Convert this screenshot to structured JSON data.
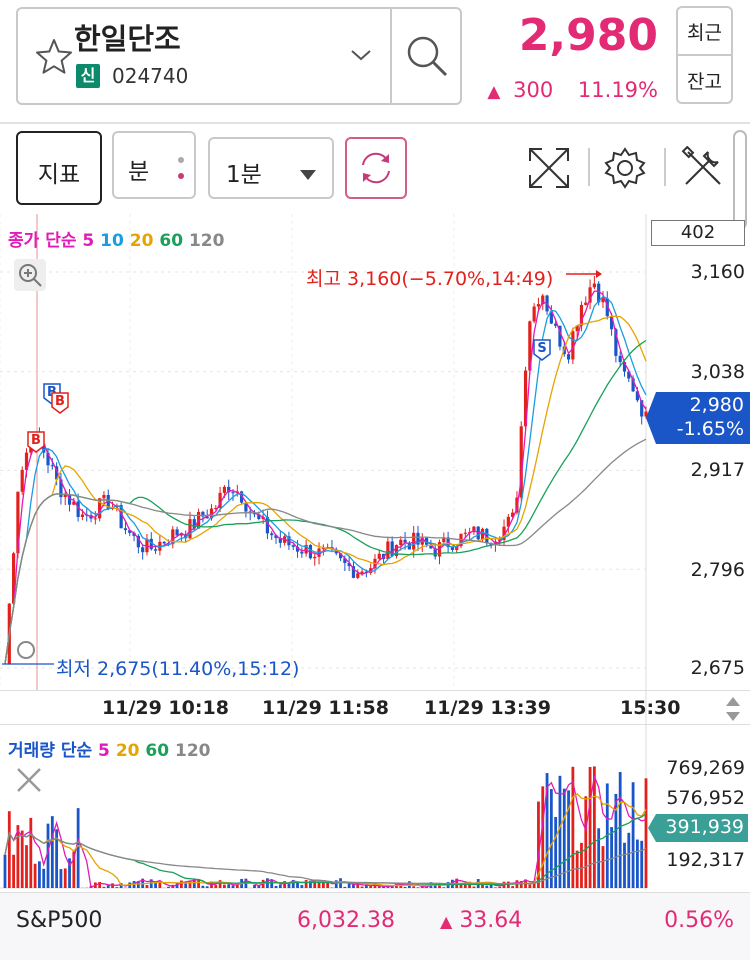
{
  "header": {
    "stock_name": "한일단조",
    "credit_badge": "신",
    "stock_code": "024740",
    "price": "2,980",
    "change_arrow": "▲",
    "change_amount": "300",
    "change_rate": "11.19%",
    "recent_label": "최근",
    "balance_label": "잔고"
  },
  "toolbar": {
    "indicator_label": "지표",
    "minute_label": "분",
    "interval_value": "1분"
  },
  "chart": {
    "ma_legend": {
      "prefix": "종가 단순",
      "p5": "5",
      "p10": "10",
      "p20": "20",
      "p60": "60",
      "p120": "120"
    },
    "box_value": "402",
    "y_ticks": [
      "3,160",
      "3,038",
      "2,917",
      "2,796",
      "2,675"
    ],
    "current_price": "2,980",
    "current_change": "-1.65%",
    "max_annotation": "최고 3,160(−5.70%,14:49)",
    "min_annotation": "최저 2,675(11.40%,15:12)",
    "x_ticks": [
      "11/29 10:18",
      "11/29 11:58",
      "11/29 13:39",
      "15:30"
    ],
    "colors": {
      "up": "#e2211c",
      "down": "#1a56c8",
      "ma5": "#e21bb8",
      "ma10": "#1a9ce0",
      "ma20": "#e6a400",
      "ma60": "#1aa05a",
      "ma120": "#888888"
    }
  },
  "volume": {
    "legend": {
      "prefix": "거래량 단순",
      "p5": "5",
      "p20": "20",
      "p60": "60",
      "p120": "120"
    },
    "y_ticks": [
      "769,269",
      "576,952",
      "192,317"
    ],
    "current_volume": "391,939"
  },
  "footer": {
    "index_name": "S&P500",
    "index_value": "6,032.38",
    "index_arrow": "▲",
    "index_change": "33.64",
    "index_rate": "0.56%"
  },
  "chart_data": {
    "type": "line",
    "ylim": [
      2675,
      3160
    ],
    "series": [
      {
        "name": "종가",
        "values": [
          2680,
          2900,
          2960,
          2940,
          2900,
          2880,
          2860,
          2870,
          2880,
          2850,
          2830,
          2820,
          2830,
          2840,
          2845,
          2860,
          2870,
          2900,
          2890,
          2860,
          2845,
          2830,
          2825,
          2820,
          2815,
          2810,
          2800,
          2795,
          2800,
          2815,
          2830,
          2830,
          2825,
          2820,
          2830,
          2835,
          2840,
          2835,
          2845,
          2860,
          3100,
          3140,
          3090,
          3060,
          3120,
          3150,
          3110,
          3040,
          3020,
          2980
        ]
      }
    ]
  }
}
